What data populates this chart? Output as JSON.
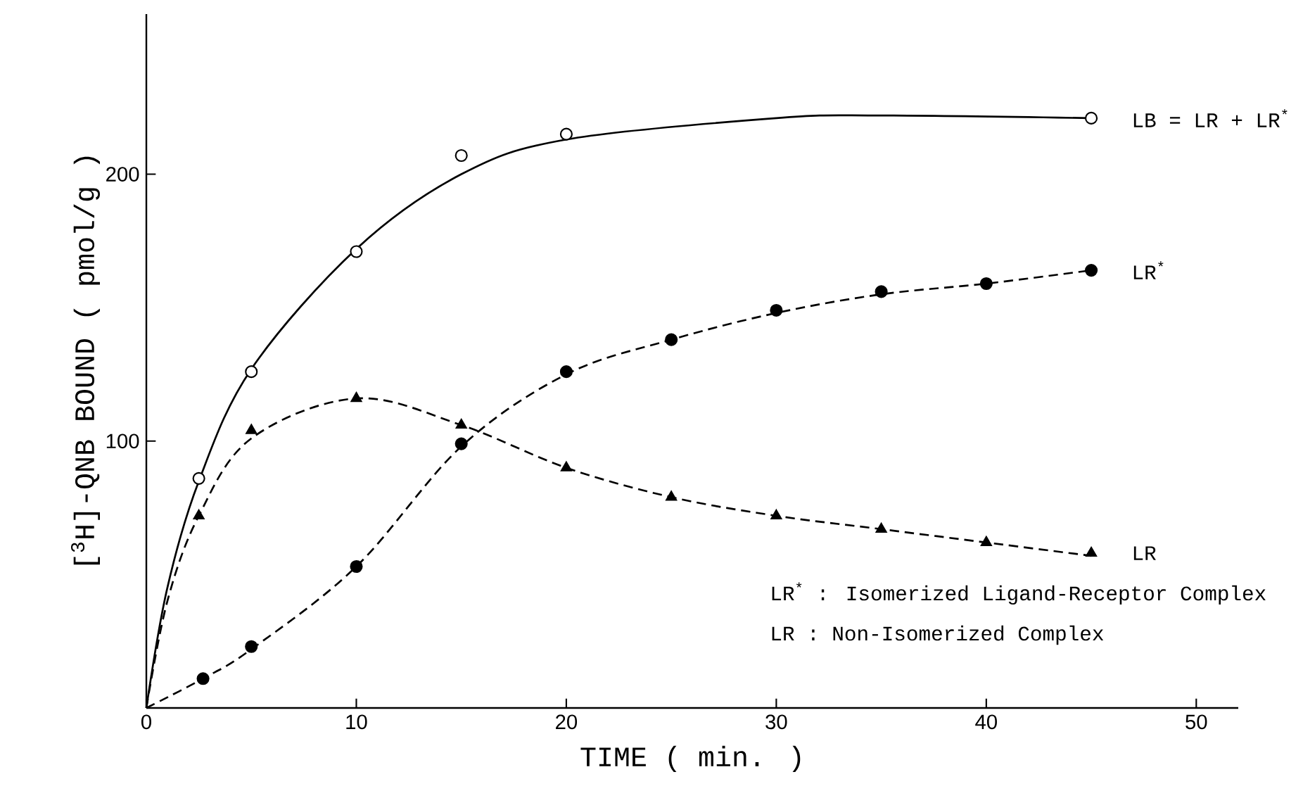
{
  "chart_data": {
    "type": "scatter",
    "xlabel": "TIME ( min. )",
    "ylabel": "[$^{3}$H]-QNB BOUND ( pmol/g )",
    "xlim": [
      0,
      52
    ],
    "ylim": [
      0,
      260
    ],
    "xticks": [
      0,
      10,
      20,
      30,
      40,
      50
    ],
    "yticks": [
      100,
      200
    ],
    "grid": false,
    "legend": false,
    "series": [
      {
        "name": "LB = LR + LR$^{*}$",
        "marker": "circle",
        "color": "#ffffff",
        "x": [
          2.5,
          5,
          10,
          15,
          20,
          45
        ],
        "values": [
          86,
          126,
          171,
          207,
          215,
          221
        ]
      },
      {
        "name": "LR$^{*}$",
        "marker": "circle",
        "color": "#000000",
        "x": [
          2.7,
          5,
          10,
          15,
          20,
          25,
          30,
          35,
          40,
          45
        ],
        "values": [
          11,
          23,
          53,
          99,
          126,
          138,
          149,
          156,
          159,
          164
        ]
      },
      {
        "name": "LR",
        "marker": "triangle",
        "color": "#000000",
        "x": [
          2.5,
          5,
          10,
          15,
          20,
          25,
          30,
          35,
          40,
          45
        ],
        "values": [
          72,
          104,
          116,
          106,
          90,
          79,
          72,
          67,
          62,
          58
        ]
      },
      {
        "type": "line",
        "marker": "none",
        "line_style": "solid",
        "color": "#000000",
        "x": [
          0,
          1,
          2.5,
          5,
          10,
          15,
          20,
          30,
          35,
          45
        ],
        "values": [
          0,
          45,
          85,
          127,
          172,
          200,
          213,
          221,
          222,
          221
        ]
      },
      {
        "type": "line",
        "marker": "none",
        "line_style": "dashed",
        "color": "#000000",
        "x": [
          0,
          2.7,
          5,
          10,
          15,
          20,
          25,
          30,
          35,
          40,
          45
        ],
        "values": [
          0,
          11,
          22,
          53,
          98,
          125,
          138,
          148,
          155,
          159,
          164
        ]
      },
      {
        "type": "line",
        "marker": "none",
        "line_style": "dashed",
        "color": "#000000",
        "x": [
          0,
          1,
          2.5,
          5,
          10,
          15,
          20,
          25,
          30,
          35,
          40,
          45
        ],
        "values": [
          0,
          40,
          72,
          101,
          116,
          106,
          90,
          79,
          72,
          67,
          62,
          57
        ]
      }
    ],
    "annotations": [
      "LR$^{*}$ : Isomerized Ligand-Receptor Complex",
      "LR  : Non-Isomerized Complex"
    ]
  }
}
